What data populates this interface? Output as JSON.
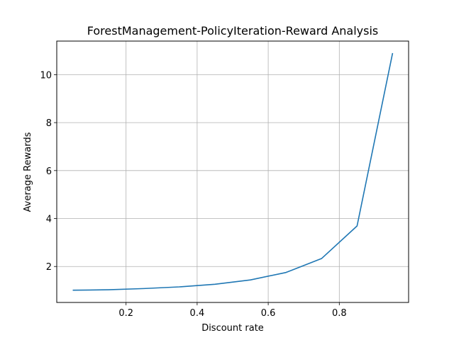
{
  "chart_data": {
    "type": "line",
    "title": "ForestManagement-PolicyIteration-Reward Analysis",
    "xlabel": "Discount rate",
    "ylabel": "Average Rewards",
    "xlim": [
      0.005,
      0.995
    ],
    "ylim": [
      0.5,
      11.4
    ],
    "x_ticks": [
      0.2,
      0.4,
      0.6,
      0.8
    ],
    "y_ticks": [
      2,
      4,
      6,
      8,
      10
    ],
    "x_tick_labels": [
      "0.2",
      "0.4",
      "0.6",
      "0.8"
    ],
    "y_tick_labels": [
      "2",
      "4",
      "6",
      "8",
      "10"
    ],
    "grid": true,
    "series": [
      {
        "color": "#1f77b4",
        "x": [
          0.05,
          0.15,
          0.25,
          0.35,
          0.45,
          0.55,
          0.65,
          0.75,
          0.85,
          0.95
        ],
        "y": [
          1.01,
          1.03,
          1.08,
          1.15,
          1.26,
          1.44,
          1.75,
          2.33,
          3.69,
          10.9
        ]
      }
    ]
  }
}
